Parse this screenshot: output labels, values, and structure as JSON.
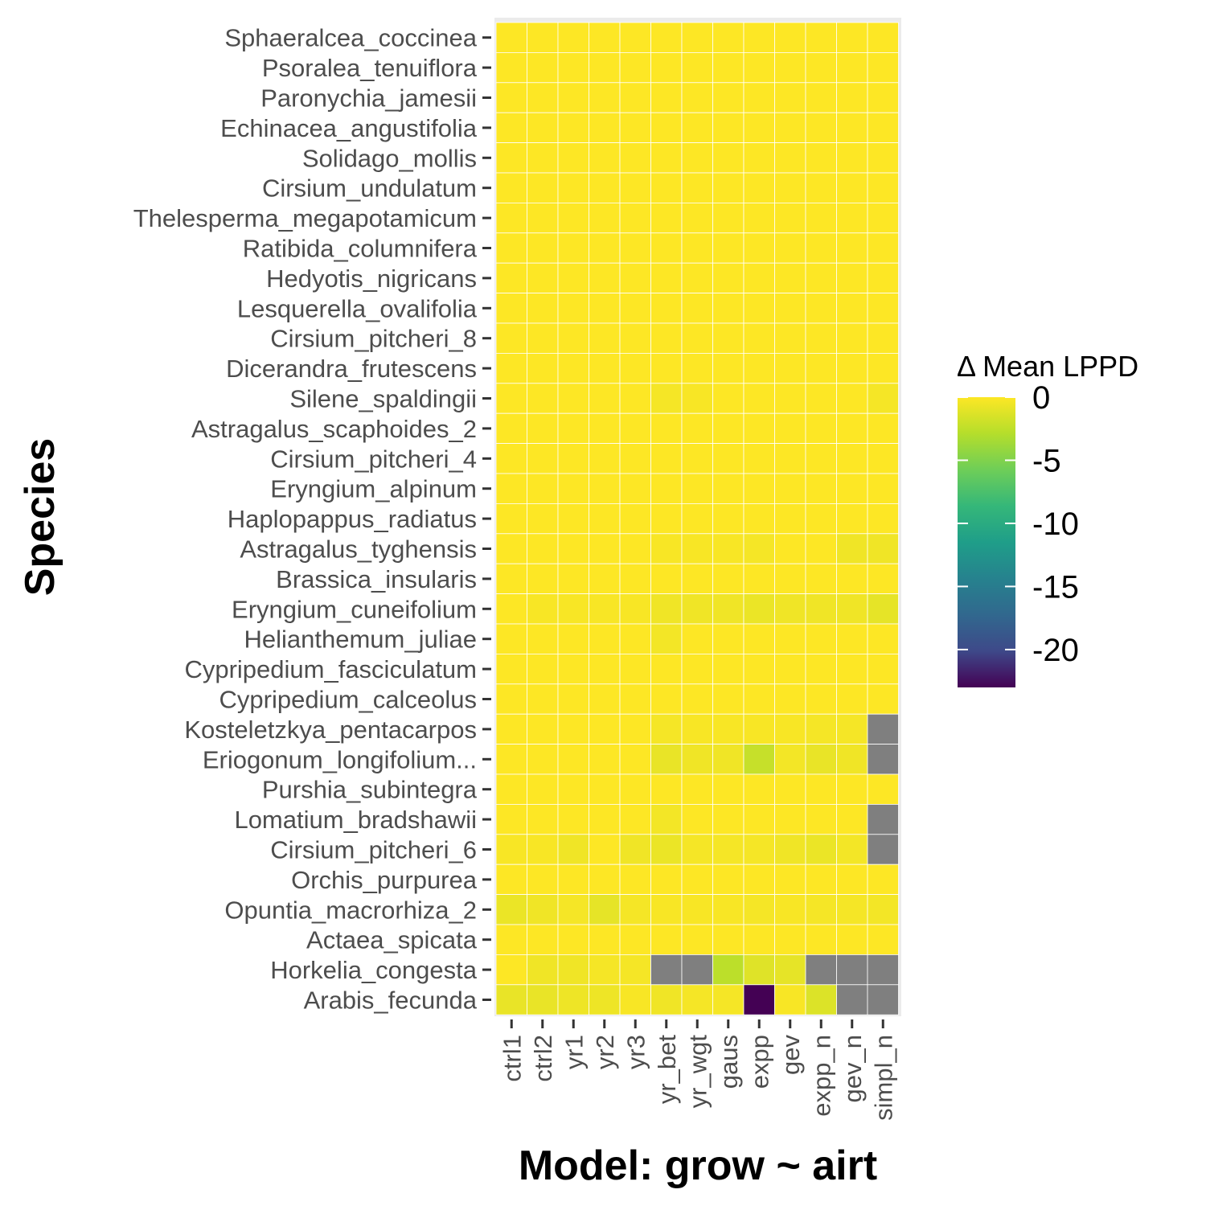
{
  "chart_data": {
    "type": "heatmap",
    "xlabel": "Model: grow ~ airt",
    "ylabel": "Species",
    "legend_title": "Δ Mean LPPD",
    "legend_ticks": [
      "0",
      "-5",
      "-10",
      "-15",
      "-20"
    ],
    "legend_tick_values": [
      0,
      -5,
      -10,
      -15,
      -20
    ],
    "color_range": [
      -23,
      0
    ],
    "colormap": "viridis",
    "na_color": "#7f7f7f",
    "legend_position": "right",
    "x_categories": [
      "ctrl1",
      "ctrl2",
      "yr1",
      "yr2",
      "yr3",
      "yr_bet",
      "yr_wgt",
      "gaus",
      "expp",
      "gev",
      "expp_n",
      "gev_n",
      "simpl_n"
    ],
    "y_categories": [
      "Sphaeralcea_coccinea",
      "Psoralea_tenuiflora",
      "Paronychia_jamesii",
      "Echinacea_angustifolia",
      "Solidago_mollis",
      "Cirsium_undulatum",
      "Thelesperma_megapotamicum",
      "Ratibida_columnifera",
      "Hedyotis_nigricans",
      "Lesquerella_ovalifolia",
      "Cirsium_pitcheri_8",
      "Dicerandra_frutescens",
      "Silene_spaldingii",
      "Astragalus_scaphoides_2",
      "Cirsium_pitcheri_4",
      "Eryngium_alpinum",
      "Haplopappus_radiatus",
      "Astragalus_tyghensis",
      "Brassica_insularis",
      "Eryngium_cuneifolium",
      "Helianthemum_juliae",
      "Cypripedium_fasciculatum",
      "Cypripedium_calceolus",
      "Kosteletzkya_pentacarpos",
      "Eriogonum_longifolium...",
      "Purshia_subintegra",
      "Lomatium_bradshawii",
      "Cirsium_pitcheri_6",
      "Orchis_purpurea",
      "Opuntia_macrorhiza_2",
      "Actaea_spicata",
      "Horkelia_congesta",
      "Arabis_fecunda"
    ],
    "values": [
      [
        0,
        0,
        0,
        0,
        0,
        0,
        0,
        0,
        0,
        0,
        0,
        0,
        0
      ],
      [
        0,
        0,
        0,
        0,
        0,
        0,
        0,
        0,
        0,
        0,
        0,
        0,
        0
      ],
      [
        0,
        0,
        0,
        0,
        0,
        0,
        0,
        0,
        0,
        0,
        0,
        0,
        0
      ],
      [
        0,
        0,
        0,
        0,
        0,
        0,
        0,
        0,
        0,
        0,
        0,
        0,
        0
      ],
      [
        0,
        0,
        0,
        0,
        0,
        0,
        0,
        0,
        0,
        0,
        0,
        0,
        0
      ],
      [
        0,
        0,
        0,
        0,
        0,
        0,
        0,
        0,
        0,
        0,
        0,
        0,
        0
      ],
      [
        0,
        0,
        0,
        0,
        0,
        0,
        0,
        0,
        0,
        0,
        0,
        0,
        0
      ],
      [
        0,
        0,
        0,
        0,
        0,
        0,
        0,
        0,
        0,
        0,
        0,
        0,
        0
      ],
      [
        0,
        0,
        0,
        0,
        0,
        0,
        0,
        0,
        0,
        0,
        0,
        0,
        0
      ],
      [
        0,
        0,
        0,
        0,
        0,
        0,
        0,
        0,
        0,
        0,
        0,
        0,
        0
      ],
      [
        0,
        0,
        0,
        0,
        0,
        0,
        0,
        0,
        0,
        0,
        0,
        0,
        0
      ],
      [
        0,
        0,
        0,
        0,
        0,
        0,
        0,
        0,
        0,
        0,
        0,
        0,
        0
      ],
      [
        0,
        0,
        0,
        0,
        0,
        -0.3,
        -0.2,
        0,
        0,
        0,
        0,
        0,
        -0.3
      ],
      [
        0,
        0,
        0,
        0,
        0,
        0,
        0,
        0,
        0,
        0,
        0,
        0,
        0
      ],
      [
        0,
        0,
        0,
        0,
        0,
        0,
        0,
        0,
        0,
        0,
        0,
        0,
        0
      ],
      [
        0,
        0,
        0,
        0,
        0,
        0,
        0,
        0,
        0,
        0,
        0,
        0,
        0
      ],
      [
        0,
        0,
        0,
        0,
        0,
        0,
        0,
        0,
        0,
        0,
        0,
        0,
        0
      ],
      [
        0,
        0,
        0,
        0,
        0,
        -0.2,
        -0.2,
        -0.2,
        -0.3,
        0,
        0,
        -0.5,
        -0.5
      ],
      [
        0,
        0,
        0,
        0,
        0,
        0,
        0,
        0,
        0,
        0,
        0,
        0,
        0
      ],
      [
        0,
        -0.2,
        -0.2,
        -0.2,
        -0.2,
        -0.5,
        -0.5,
        -0.5,
        -0.7,
        -0.5,
        -0.5,
        -0.5,
        -0.9
      ],
      [
        0,
        0,
        0,
        0,
        0,
        -0.4,
        0,
        0,
        0,
        0,
        0,
        0,
        0
      ],
      [
        0,
        0,
        0,
        0,
        0,
        0,
        0,
        0,
        0,
        0,
        0,
        0,
        0
      ],
      [
        0,
        0,
        0,
        0,
        0,
        0,
        0,
        0,
        0,
        0,
        0,
        0,
        0
      ],
      [
        0,
        0,
        0,
        0,
        0,
        -0.3,
        -0.2,
        -0.2,
        -0.2,
        -0.2,
        -0.3,
        -0.3,
        null
      ],
      [
        0,
        0,
        0,
        0,
        0,
        -0.8,
        -0.5,
        -0.5,
        -2.2,
        -0.4,
        -0.8,
        -0.5,
        null
      ],
      [
        0,
        0,
        0,
        0,
        0,
        0,
        0,
        0,
        0,
        0,
        0,
        0,
        0
      ],
      [
        0,
        0,
        0,
        0,
        0,
        -0.4,
        0,
        0,
        0,
        0,
        0,
        0,
        null
      ],
      [
        -0.2,
        -0.2,
        -0.5,
        0,
        -0.5,
        -0.7,
        -0.3,
        -0.3,
        -0.3,
        -0.5,
        -0.7,
        -0.4,
        null
      ],
      [
        0,
        0,
        0,
        0,
        0,
        0,
        0,
        0,
        0,
        0,
        0,
        0,
        0
      ],
      [
        -0.7,
        -0.5,
        -0.3,
        -0.9,
        -0.3,
        -0.2,
        -0.2,
        -0.2,
        -0.3,
        -0.2,
        -0.3,
        -0.3,
        -0.4
      ],
      [
        0,
        0,
        0,
        0,
        0,
        0,
        0,
        0,
        0,
        0,
        0,
        0,
        0
      ],
      [
        0,
        -0.5,
        -0.5,
        -0.3,
        -0.3,
        null,
        null,
        -2.6,
        -1.2,
        -0.9,
        null,
        null,
        null
      ],
      [
        -0.8,
        -0.8,
        -0.6,
        -0.6,
        -0.2,
        -0.5,
        -0.3,
        -0.3,
        -23,
        -0.2,
        -1.3,
        null,
        null
      ]
    ]
  }
}
